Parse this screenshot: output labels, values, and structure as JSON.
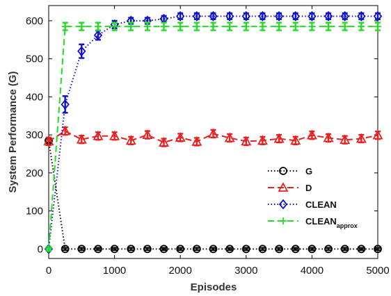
{
  "chart_data": {
    "type": "line",
    "title": "",
    "xlabel": "Episodes",
    "ylabel": "System Performance (G)",
    "xlim": [
      0,
      5000
    ],
    "ylim": [
      -25,
      640
    ],
    "xticks": [
      0,
      1000,
      2000,
      3000,
      4000,
      5000
    ],
    "yticks": [
      0,
      100,
      200,
      300,
      400,
      500,
      600
    ],
    "grid": false,
    "legend_position": "right",
    "x": [
      0,
      250,
      500,
      750,
      1000,
      1250,
      1500,
      1750,
      2000,
      2250,
      2500,
      2750,
      3000,
      3250,
      3500,
      3750,
      4000,
      4250,
      4500,
      4750,
      5000
    ],
    "series": [
      {
        "name": "G",
        "legend_text": "G",
        "legend_sub": "",
        "color": "#000000",
        "line": "dotted",
        "marker": "circle",
        "values": [
          285,
          0,
          0,
          0,
          0,
          0,
          0,
          0,
          0,
          0,
          0,
          0,
          0,
          0,
          0,
          0,
          0,
          0,
          0,
          0,
          0
        ],
        "errors": [
          5,
          3,
          3,
          3,
          3,
          3,
          3,
          3,
          3,
          3,
          3,
          3,
          3,
          3,
          3,
          3,
          3,
          3,
          3,
          3,
          3
        ]
      },
      {
        "name": "D",
        "legend_text": "D",
        "legend_sub": "",
        "color": "#e8201f",
        "line": "dashed",
        "marker": "triangle",
        "values": [
          283,
          310,
          288,
          297,
          297,
          285,
          300,
          280,
          293,
          282,
          303,
          292,
          283,
          285,
          290,
          285,
          299,
          292,
          287,
          290,
          299
        ],
        "errors": [
          10,
          10,
          10,
          10,
          10,
          10,
          10,
          10,
          10,
          10,
          10,
          10,
          10,
          10,
          10,
          10,
          10,
          10,
          10,
          10,
          10
        ]
      },
      {
        "name": "CLEAN",
        "legend_text": "CLEAN",
        "legend_sub": "",
        "color": "#1010cc",
        "line": "dotted",
        "marker": "diamond",
        "values": [
          0,
          380,
          520,
          562,
          590,
          600,
          600,
          605,
          612,
          612,
          612,
          612,
          612,
          612,
          612,
          612,
          612,
          612,
          612,
          612,
          612
        ],
        "errors": [
          5,
          22,
          18,
          12,
          10,
          8,
          8,
          8,
          8,
          8,
          8,
          8,
          8,
          8,
          8,
          8,
          8,
          8,
          8,
          8,
          8
        ]
      },
      {
        "name": "CLEAN_approx",
        "legend_text": "CLEAN",
        "legend_sub": "approx",
        "color": "#22dd22",
        "line": "dashed",
        "marker": "plus",
        "values": [
          0,
          585,
          585,
          585,
          585,
          585,
          585,
          585,
          585,
          585,
          585,
          585,
          585,
          585,
          585,
          585,
          585,
          585,
          585,
          585,
          585
        ],
        "errors": [
          5,
          10,
          10,
          10,
          10,
          10,
          10,
          10,
          10,
          10,
          10,
          10,
          10,
          10,
          10,
          10,
          10,
          10,
          10,
          10,
          10
        ]
      }
    ]
  }
}
